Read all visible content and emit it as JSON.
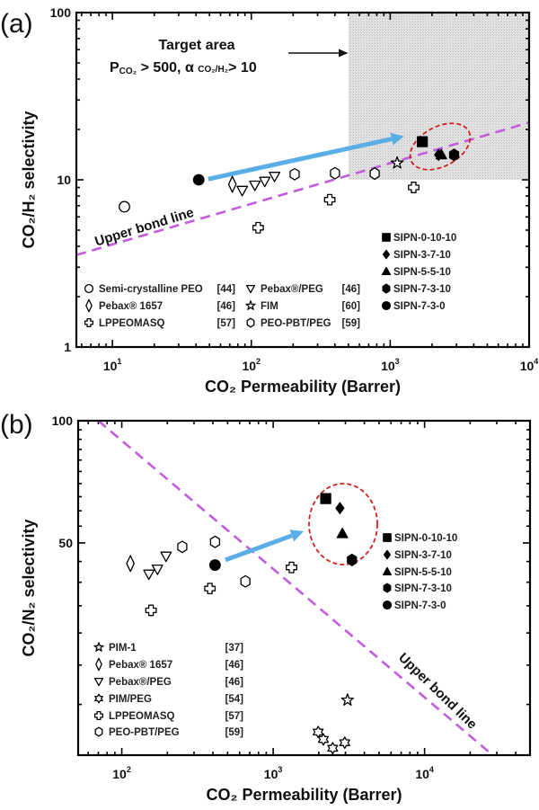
{
  "chart_data": [
    {
      "type": "scatter",
      "panel_label": "(a)",
      "xlabel": "CO₂ Permeability (Barrer)",
      "ylabel": "CO₂/H₂ selectivity",
      "xscale": "log",
      "yscale": "log",
      "xlim": [
        5.5,
        10000
      ],
      "ylim": [
        1,
        100
      ],
      "xticks": [
        {
          "base": "10",
          "exp": "1",
          "value": 10
        },
        {
          "base": "10",
          "exp": "2",
          "value": 100
        },
        {
          "base": "10",
          "exp": "3",
          "value": 1000
        },
        {
          "base": "10",
          "exp": "4",
          "value": 10000
        }
      ],
      "yticks": [
        {
          "label": "1",
          "value": 1
        },
        {
          "label": "10",
          "value": 10
        },
        {
          "label": "100",
          "value": 100
        }
      ],
      "annotation": {
        "title": "Target area",
        "p": "P",
        "p_sub": "CO₂",
        "cond1": " > 500, α ",
        "alpha_sub": "CO₂/H₂",
        "cond2": "> 10"
      },
      "target_area": {
        "x_min": 500,
        "y_min": 10
      },
      "upper_bound": {
        "label": "Upper bond line",
        "points": [
          [
            5.5,
            3.55
          ],
          [
            10000,
            22
          ]
        ]
      },
      "arrow": {
        "from": [
          49,
          10.1
        ],
        "to": [
          1256,
          18.2
        ]
      },
      "series": [
        {
          "name": "Semi-crystalline PEO",
          "ref": "[44]",
          "marker": "circle",
          "filled": false,
          "points": [
            [
              12.2,
              6.9
            ]
          ]
        },
        {
          "name": "Pebax® 1657",
          "ref": "[46]",
          "marker": "tall-diamond",
          "filled": false,
          "points": [
            [
              73,
              9.4
            ]
          ]
        },
        {
          "name": "LPPEOMASQ",
          "ref": "[57]",
          "marker": "cross",
          "filled": false,
          "points": [
            [
              112,
              5.17
            ],
            [
              367,
              7.6
            ],
            [
              1475,
              9.0
            ]
          ]
        },
        {
          "name": "Pebax®/PEG",
          "ref": "[46]",
          "marker": "triangle-down",
          "filled": false,
          "points": [
            [
              86,
              8.65
            ],
            [
              106,
              9.3
            ],
            [
              125,
              9.8
            ],
            [
              147,
              10.5
            ]
          ]
        },
        {
          "name": "FIM",
          "ref": "[60]",
          "marker": "star5",
          "filled": false,
          "points": [
            [
              1122,
              12.6
            ]
          ]
        },
        {
          "name": "PEO-PBT/PEG",
          "ref": "[59]",
          "marker": "hexagon",
          "filled": false,
          "points": [
            [
              205,
              10.8
            ],
            [
              400,
              10.95
            ],
            [
              773,
              10.9
            ]
          ]
        },
        {
          "name": "SIPN-0-10-10",
          "ref": "",
          "marker": "square",
          "filled": true,
          "points": [
            [
              1702,
              16.9
            ]
          ]
        },
        {
          "name": "SIPN-3-7-10",
          "ref": "",
          "marker": "diamond",
          "filled": true,
          "points": [
            [
              2228,
              14.1
            ]
          ]
        },
        {
          "name": "SIPN-5-5-10",
          "ref": "",
          "marker": "triangle-up",
          "filled": true,
          "points": [
            [
              2334,
              14.1
            ]
          ]
        },
        {
          "name": "SIPN-7-3-10",
          "ref": "",
          "marker": "hexagon",
          "filled": true,
          "points": [
            [
              2884,
              14.1
            ]
          ]
        },
        {
          "name": "SIPN-7-3-0",
          "ref": "",
          "marker": "circle",
          "filled": true,
          "points": [
            [
              41.8,
              10
            ]
          ]
        }
      ]
    },
    {
      "type": "scatter",
      "panel_label": "(b)",
      "xlabel": "CO₂ Permeability (Barrer)",
      "ylabel": "CO₂/N₂ selectivity",
      "xscale": "log",
      "yscale": "log",
      "xlim": [
        51.5,
        49700
      ],
      "ylim": [
        15,
        100
      ],
      "xticks": [
        {
          "base": "10",
          "exp": "2",
          "value": 100
        },
        {
          "base": "10",
          "exp": "3",
          "value": 1000
        },
        {
          "base": "10",
          "exp": "4",
          "value": 10000
        }
      ],
      "yticks": [
        {
          "label": "50",
          "value": 50
        },
        {
          "label": "100",
          "value": 100
        }
      ],
      "upper_bound": {
        "label": "Upper bond line",
        "points": [
          [
            70,
            100
          ],
          [
            28200,
            15
          ]
        ]
      },
      "arrow": {
        "from": [
          484,
          45.4
        ],
        "to": [
          1589,
          53.4
        ]
      },
      "series": [
        {
          "name": "PIM-1",
          "ref": "[37]",
          "marker": "star5",
          "filled": false,
          "points": [
            [
              3097,
              20.5
            ]
          ]
        },
        {
          "name": "Pebax® 1657",
          "ref": "[46]",
          "marker": "tall-diamond",
          "filled": false,
          "points": [
            [
              114,
              44.5
            ]
          ]
        },
        {
          "name": "Pebax®/PEG",
          "ref": "[46]",
          "marker": "triangle-down",
          "filled": false,
          "points": [
            [
              151,
              41.9
            ],
            [
              172,
              43.1
            ],
            [
              196,
              46.4
            ]
          ]
        },
        {
          "name": "PIM/PEG",
          "ref": "[54]",
          "marker": "star6",
          "filled": false,
          "points": [
            [
              1983,
              17.1
            ],
            [
              2145,
              16.4
            ],
            [
              2472,
              15.6
            ],
            [
              2969,
              16.1
            ]
          ]
        },
        {
          "name": "LPPEOMASQ",
          "ref": "[57]",
          "marker": "cross",
          "filled": false,
          "points": [
            [
              156,
              34.1
            ],
            [
              382,
              38.6
            ],
            [
              1321,
              43.5
            ]
          ]
        },
        {
          "name": "PEO-PBT/PEG",
          "ref": "[59]",
          "marker": "hexagon",
          "filled": false,
          "points": [
            [
              251,
              48.9
            ],
            [
              413,
              50.3
            ],
            [
              656,
              40.2
            ]
          ]
        },
        {
          "name": "SIPN-0-10-10",
          "ref": "",
          "marker": "square",
          "filled": true,
          "points": [
            [
              2223,
              64.3
            ]
          ]
        },
        {
          "name": "SIPN-3-7-10",
          "ref": "",
          "marker": "diamond",
          "filled": true,
          "points": [
            [
              2760,
              60.9
            ]
          ]
        },
        {
          "name": "SIPN-5-5-10",
          "ref": "",
          "marker": "triangle-up",
          "filled": true,
          "points": [
            [
              2866,
              52.7
            ]
          ]
        },
        {
          "name": "SIPN-7-3-10",
          "ref": "",
          "marker": "hexagon",
          "filled": true,
          "points": [
            [
              3315,
              45.4
            ]
          ]
        },
        {
          "name": "SIPN-7-3-0",
          "ref": "",
          "marker": "circle",
          "filled": true,
          "points": [
            [
              413,
              44.1
            ]
          ]
        }
      ]
    }
  ],
  "colors": {
    "upper_bound": "#c35be0",
    "arrow": "#5aaee6",
    "ellipse": "#d42020",
    "target_fill": "#d9d9d9"
  }
}
